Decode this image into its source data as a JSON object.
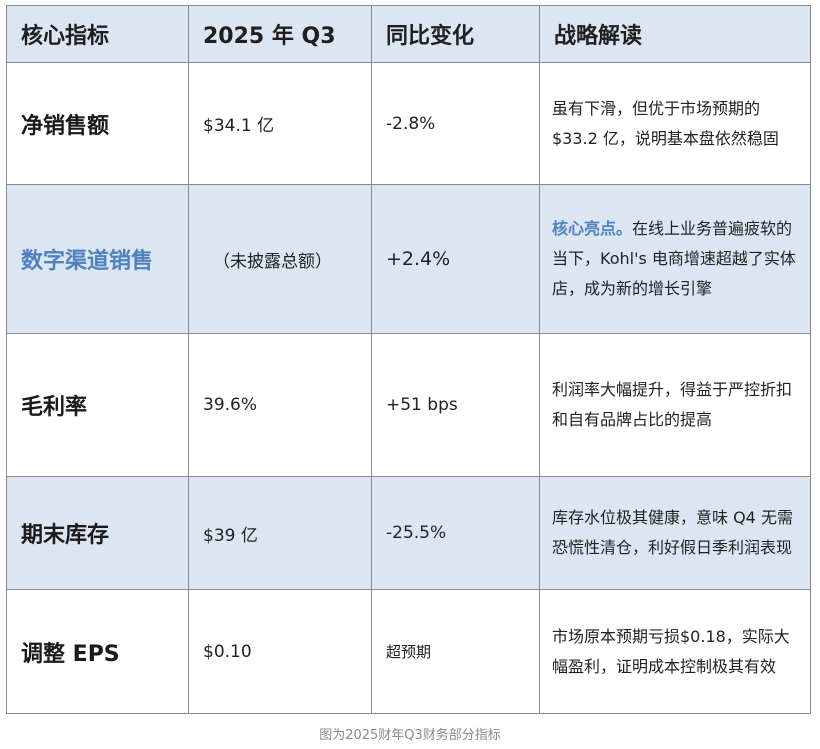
{
  "table": {
    "headers": [
      "核心指标",
      "2025 年 Q3",
      "同比变化",
      "战略解读"
    ],
    "rows": [
      {
        "metric": "净销售额",
        "value": "$34.1 亿",
        "change": "-2.8%",
        "note": "虽有下滑，但优于市场预期的$33.2 亿，说明基本盘依然稳固"
      },
      {
        "metric": "数字渠道销售",
        "value": "（未披露总额）",
        "change": "+2.4%",
        "note_highlight": "核心亮点。",
        "note": "在线上业务普遍疲软的当下，Kohl's 电商增速超越了实体店，成为新的增长引擎"
      },
      {
        "metric": "毛利率",
        "value": "39.6%",
        "change": "+51 bps",
        "note": "利润率大幅提升，得益于严控折扣和自有品牌占比的提高"
      },
      {
        "metric": "期末库存",
        "value": "$39 亿",
        "change": "-25.5%",
        "note": "库存水位极其健康，意味 Q4 无需恐慌性清仓，利好假日季利润表现"
      },
      {
        "metric": "调整 EPS",
        "value": "$0.10",
        "change": "超预期",
        "note": "市场原本预期亏损$0.18，实际大幅盈利，证明成本控制极其有效"
      }
    ]
  },
  "caption": "图为2025财年Q3财务部分指标",
  "colors": {
    "header_bg": "#dce6f2",
    "accent": "#4f81bd",
    "border": "#8a8a8a"
  }
}
